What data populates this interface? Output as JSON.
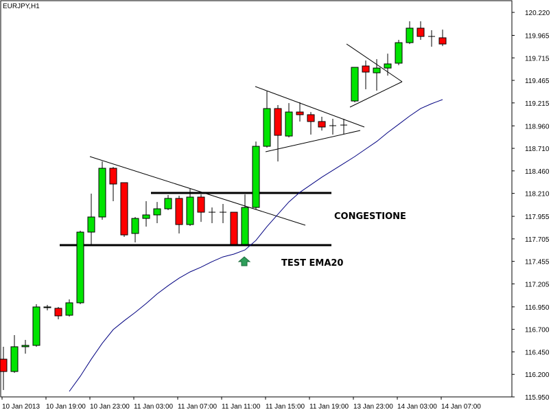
{
  "chart_data": {
    "type": "candlestick",
    "title": "EURJPY,H1",
    "categories": [
      "10 Jan 2013",
      null,
      null,
      null,
      "10 Jan 19:00",
      null,
      null,
      null,
      "10 Jan 23:00",
      null,
      null,
      null,
      "11 Jan 03:00",
      null,
      null,
      null,
      "11 Jan 07:00",
      null,
      null,
      null,
      "11 Jan 11:00",
      null,
      null,
      null,
      "11 Jan 15:00",
      null,
      null,
      null,
      "11 Jan 19:00",
      null,
      null,
      null,
      "13 Jan 23:00",
      null,
      null,
      null,
      "14 Jan 03:00",
      null,
      null,
      null,
      "14 Jan 07:00"
    ],
    "open": [
      116.369,
      116.232,
      116.507,
      116.522,
      116.941,
      116.934,
      116.857,
      116.995,
      117.78,
      117.948,
      118.489,
      118.329,
      117.765,
      117.932,
      117.971,
      118.039,
      118.154,
      117.864,
      118.169,
      118.001,
      118.001,
      118.001,
      117.643,
      118.054,
      118.733,
      119.152,
      118.847,
      119.114,
      119.084,
      119.008,
      118.962,
      118.969,
      119.236,
      119.625,
      119.549,
      119.602,
      119.656,
      119.884,
      120.045,
      119.953,
      119.938
    ],
    "high": [
      116.507,
      116.636,
      116.583,
      116.979,
      116.972,
      116.949,
      117.033,
      117.795,
      118.207,
      118.565,
      118.504,
      118.329,
      117.948,
      118.123,
      118.115,
      118.192,
      118.184,
      118.26,
      118.199,
      118.054,
      118.093,
      118.001,
      118.199,
      118.786,
      119.343,
      119.191,
      119.213,
      119.221,
      119.114,
      119.061,
      119.038,
      119.038,
      119.61,
      119.686,
      119.701,
      119.762,
      119.915,
      120.121,
      120.121,
      120.022,
      120.029
    ],
    "low": [
      116.026,
      116.217,
      116.43,
      116.507,
      116.911,
      116.812,
      116.842,
      116.979,
      117.627,
      117.917,
      118.123,
      117.727,
      117.666,
      117.841,
      117.879,
      118.024,
      117.765,
      117.849,
      117.894,
      117.879,
      117.879,
      117.627,
      117.627,
      118.032,
      118.718,
      118.565,
      118.832,
      119.008,
      118.863,
      118.908,
      118.863,
      118.87,
      119.221,
      119.366,
      119.351,
      119.518,
      119.633,
      119.869,
      119.915,
      119.839,
      119.846
    ],
    "close": [
      116.232,
      116.507,
      116.522,
      116.949,
      116.949,
      116.85,
      116.995,
      117.78,
      117.948,
      118.489,
      118.314,
      117.749,
      117.932,
      117.971,
      118.039,
      118.154,
      117.864,
      118.169,
      118.001,
      118.001,
      118.001,
      117.643,
      118.054,
      118.733,
      119.152,
      118.855,
      119.114,
      119.084,
      119.008,
      118.947,
      118.962,
      118.969,
      119.61,
      119.557,
      119.602,
      119.648,
      119.884,
      120.045,
      119.953,
      119.953,
      119.869
    ],
    "up_color": "#00e400",
    "down_color": "#ff0000",
    "ema": {
      "color": "#000080",
      "values": [
        null,
        null,
        null,
        null,
        null,
        null,
        116.011,
        116.179,
        116.369,
        116.545,
        116.697,
        116.796,
        116.888,
        116.987,
        117.094,
        117.185,
        117.269,
        117.338,
        117.391,
        117.452,
        117.505,
        117.536,
        117.582,
        117.688,
        117.841,
        117.978,
        118.115,
        118.222,
        118.306,
        118.39,
        118.466,
        118.542,
        118.619,
        118.703,
        118.786,
        118.886,
        118.977,
        119.069,
        119.152,
        119.206,
        119.252
      ]
    },
    "ylim": [
      115.95,
      120.35
    ],
    "yticks": [
      {
        "value": 120.22,
        "label": "120.220"
      },
      {
        "value": 119.965,
        "label": "119.965"
      },
      {
        "value": 119.715,
        "label": "119.715"
      },
      {
        "value": 119.465,
        "label": "119.465"
      },
      {
        "value": 119.215,
        "label": "119.215"
      },
      {
        "value": 118.96,
        "label": "118.960"
      },
      {
        "value": 118.71,
        "label": "118.710"
      },
      {
        "value": 118.46,
        "label": "118.460"
      },
      {
        "value": 118.21,
        "label": "118.210"
      },
      {
        "value": 117.955,
        "label": "117.955"
      },
      {
        "value": 117.705,
        "label": "117.705"
      },
      {
        "value": 117.455,
        "label": "117.455"
      },
      {
        "value": 117.205,
        "label": "117.205"
      },
      {
        "value": 116.95,
        "label": "116.950"
      },
      {
        "value": 116.7,
        "label": "116.700"
      },
      {
        "value": 116.45,
        "label": "116.450"
      },
      {
        "value": 116.2,
        "label": "116.200"
      },
      {
        "value": 115.95,
        "label": "115.950"
      }
    ],
    "annotations": [
      "CONGESTIONE",
      "TEST EMA20"
    ]
  }
}
